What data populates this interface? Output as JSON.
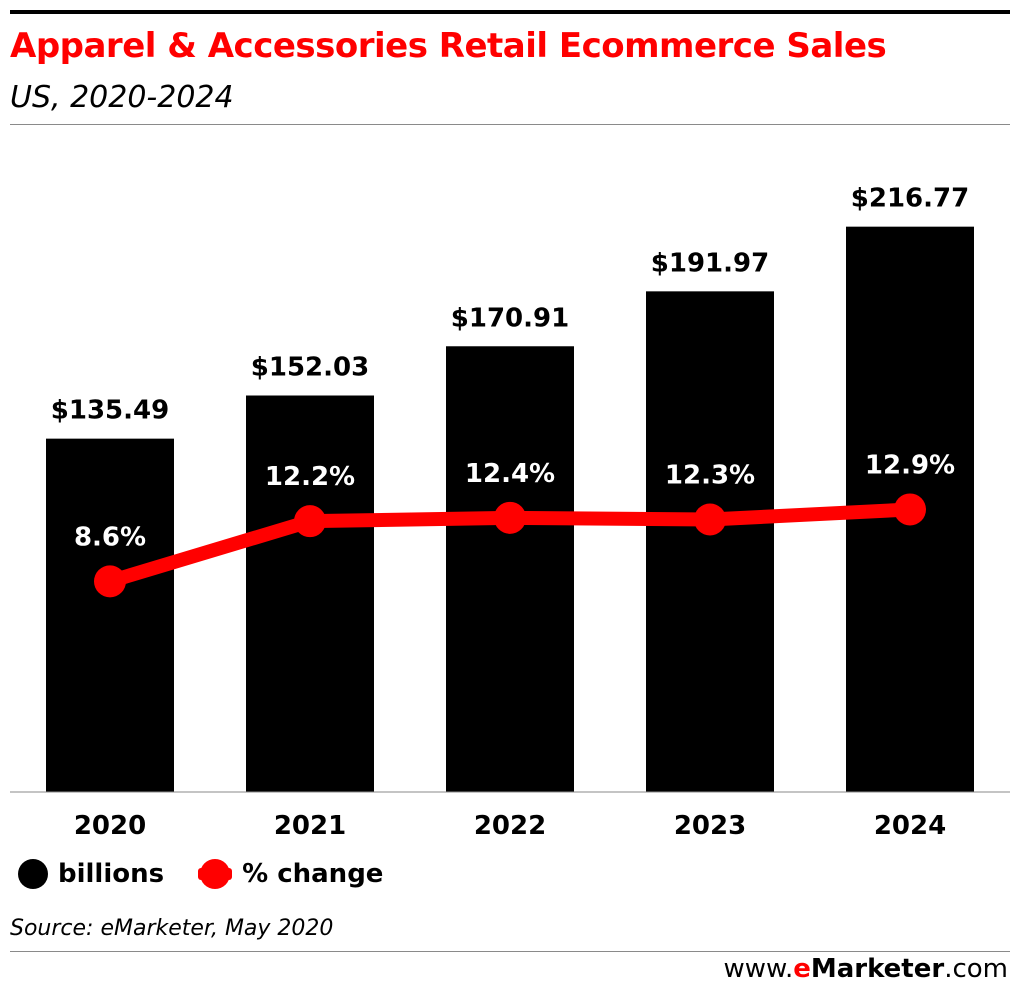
{
  "header": {
    "title": "Apparel & Accessories Retail Ecommerce Sales",
    "subtitle": "US, 2020-2024"
  },
  "chart_data": {
    "type": "bar",
    "categories": [
      "2020",
      "2021",
      "2022",
      "2023",
      "2024"
    ],
    "series": [
      {
        "name": "billions",
        "type": "bar",
        "values": [
          135.49,
          152.03,
          170.91,
          191.97,
          216.77
        ],
        "labels": [
          "$135.49",
          "$152.03",
          "$170.91",
          "$191.97",
          "$216.77"
        ],
        "color": "#000000"
      },
      {
        "name": "% change",
        "type": "line",
        "values": [
          8.6,
          12.2,
          12.4,
          12.3,
          12.9
        ],
        "labels": [
          "8.6%",
          "12.2%",
          "12.4%",
          "12.3%",
          "12.9%"
        ],
        "color": "#ff0000"
      }
    ],
    "ylim": [
      0,
      250
    ],
    "secondary_ylim": [
      -4,
      35
    ],
    "legend_position": "bottom-left",
    "grid": false
  },
  "legend": {
    "billions": "billions",
    "change": "% change"
  },
  "footer": {
    "source": "Source: eMarketer, May 2020",
    "brand_prefix": "www.",
    "brand_e": "e",
    "brand_name": "Marketer",
    "brand_suffix": ".com"
  },
  "colors": {
    "accent": "#ff0000",
    "bar": "#000000",
    "rule": "#8a8a8a"
  }
}
